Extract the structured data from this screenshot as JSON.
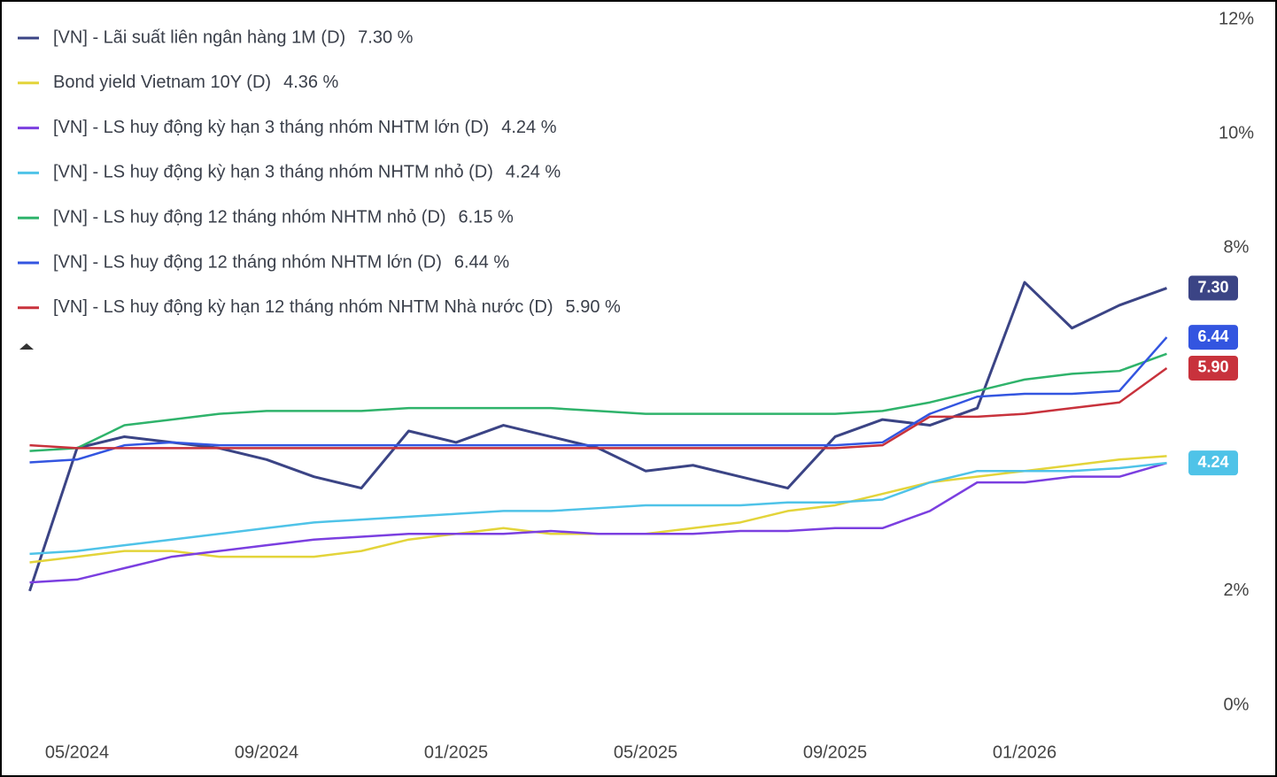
{
  "chart_data": {
    "type": "line",
    "x": [
      null,
      "05/2024",
      null,
      null,
      null,
      "09/2024",
      null,
      null,
      null,
      "01/2025",
      null,
      null,
      null,
      "05/2025",
      null,
      null,
      null,
      "09/2025",
      null,
      null,
      null,
      "01/2026",
      null,
      null,
      null
    ],
    "ylim": [
      0,
      12
    ],
    "yticks": [
      {
        "value": 0,
        "label": "0%"
      },
      {
        "value": 2,
        "label": "2%"
      },
      {
        "value": 8,
        "label": "8%"
      },
      {
        "value": 10,
        "label": "10%"
      },
      {
        "value": 12,
        "label": "12%"
      }
    ],
    "grid": false,
    "legend": "top-left",
    "series": [
      {
        "name": "[VN] - Lãi suất liên ngân hàng 1M (D)",
        "legend_value": "7.30 %",
        "flag_label": "7.30",
        "color": "#3b4485",
        "values": [
          2.0,
          4.5,
          4.7,
          4.6,
          4.5,
          4.3,
          4.0,
          3.8,
          4.8,
          4.6,
          4.9,
          4.7,
          4.5,
          4.1,
          4.2,
          4.0,
          3.8,
          4.7,
          5.0,
          4.9,
          5.2,
          7.4,
          6.6,
          7.0,
          7.3
        ]
      },
      {
        "name": "Bond yield Vietnam 10Y (D)",
        "legend_value": "4.36 %",
        "color": "#e3d43a",
        "values": [
          2.5,
          2.6,
          2.7,
          2.7,
          2.6,
          2.6,
          2.6,
          2.7,
          2.9,
          3.0,
          3.1,
          3.0,
          3.0,
          3.0,
          3.1,
          3.2,
          3.4,
          3.5,
          3.7,
          3.9,
          4.0,
          4.1,
          4.2,
          4.3,
          4.36
        ]
      },
      {
        "name": "[VN] - LS huy động kỳ hạn 3 tháng nhóm NHTM lớn (D)",
        "legend_value": "4.24 %",
        "color": "#7b3fe0",
        "values": [
          2.15,
          2.2,
          2.4,
          2.6,
          2.7,
          2.8,
          2.9,
          2.95,
          3.0,
          3.0,
          3.0,
          3.05,
          3.0,
          3.0,
          3.0,
          3.05,
          3.05,
          3.1,
          3.1,
          3.4,
          3.9,
          3.9,
          4.0,
          4.0,
          4.24
        ]
      },
      {
        "name": "[VN] - LS huy động kỳ hạn 3 tháng nhóm NHTM nhỏ (D)",
        "legend_value": "4.24 %",
        "flag_label": "4.24",
        "color": "#4fc3e8",
        "values": [
          2.65,
          2.7,
          2.8,
          2.9,
          3.0,
          3.1,
          3.2,
          3.25,
          3.3,
          3.35,
          3.4,
          3.4,
          3.45,
          3.5,
          3.5,
          3.5,
          3.55,
          3.55,
          3.6,
          3.9,
          4.1,
          4.1,
          4.1,
          4.15,
          4.24
        ]
      },
      {
        "name": "[VN] - LS huy động 12 tháng nhóm NHTM nhỏ (D)",
        "legend_value": "6.15 %",
        "color": "#2fb36b",
        "values": [
          4.45,
          4.5,
          4.9,
          5.0,
          5.1,
          5.15,
          5.15,
          5.15,
          5.2,
          5.2,
          5.2,
          5.2,
          5.15,
          5.1,
          5.1,
          5.1,
          5.1,
          5.1,
          5.15,
          5.3,
          5.5,
          5.7,
          5.8,
          5.85,
          6.15
        ]
      },
      {
        "name": "[VN] - LS huy động 12 tháng nhóm NHTM lớn (D)",
        "legend_value": "6.44 %",
        "flag_label": "6.44",
        "color": "#3355e0",
        "values": [
          4.25,
          4.3,
          4.55,
          4.6,
          4.55,
          4.55,
          4.55,
          4.55,
          4.55,
          4.55,
          4.55,
          4.55,
          4.55,
          4.55,
          4.55,
          4.55,
          4.55,
          4.55,
          4.6,
          5.1,
          5.4,
          5.45,
          5.45,
          5.5,
          6.44
        ]
      },
      {
        "name": "[VN] - LS huy động kỳ hạn 12 tháng nhóm NHTM Nhà nước (D)",
        "legend_value": "5.90 %",
        "flag_label": "5.90",
        "color": "#c8323c",
        "values": [
          4.55,
          4.5,
          4.5,
          4.5,
          4.5,
          4.5,
          4.5,
          4.5,
          4.5,
          4.5,
          4.5,
          4.5,
          4.5,
          4.5,
          4.5,
          4.5,
          4.5,
          4.5,
          4.55,
          5.05,
          5.05,
          5.1,
          5.2,
          5.3,
          5.9
        ]
      }
    ]
  }
}
